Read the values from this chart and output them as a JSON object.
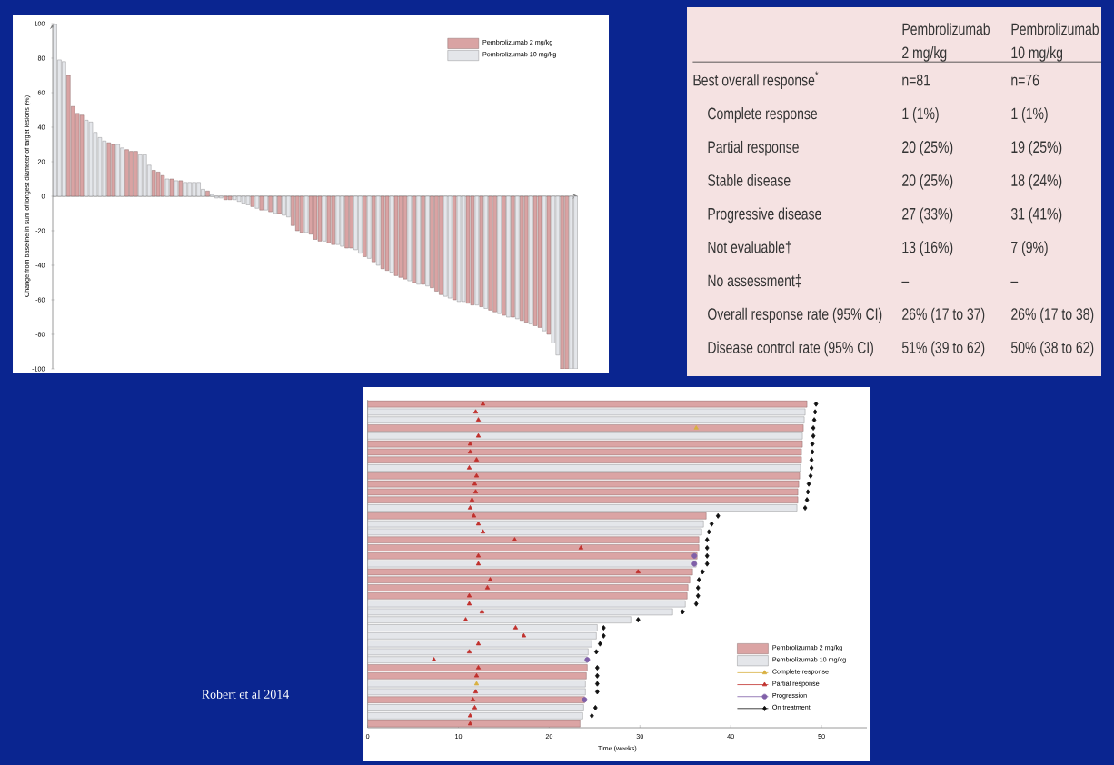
{
  "chart_data": [
    {
      "type": "bar",
      "ylabel": "Change from baseline in sum of longest diameter of target lesions (%)",
      "ylim": [
        -100,
        100
      ],
      "yticks": [
        -100,
        -80,
        -60,
        -40,
        -20,
        0,
        20,
        40,
        60,
        80,
        100
      ],
      "legend": "top right",
      "categories": [
        null,
        null,
        null,
        null,
        null,
        null,
        null,
        null,
        null,
        null,
        null,
        null,
        null,
        null,
        null,
        null,
        null,
        null,
        null,
        null,
        null,
        null,
        null,
        null,
        null,
        null,
        null,
        null,
        null,
        null,
        null,
        null,
        null,
        null,
        null,
        null,
        null,
        null,
        null,
        null,
        null,
        null,
        null,
        null,
        null,
        null,
        null,
        null,
        null,
        null,
        null,
        null,
        null,
        null,
        null,
        null,
        null,
        null,
        null,
        null,
        null,
        null,
        null,
        null,
        null,
        null,
        null,
        null,
        null,
        null,
        null,
        null,
        null,
        null,
        null,
        null,
        null,
        null,
        null,
        null,
        null,
        null,
        null,
        null,
        null,
        null,
        null,
        null,
        null,
        null,
        null,
        null,
        null,
        null,
        null,
        null,
        null,
        null,
        null,
        null,
        null,
        null,
        null,
        null,
        null,
        null,
        null,
        null,
        null,
        null,
        null,
        null,
        null,
        null,
        null,
        null,
        null
      ],
      "series": [
        {
          "name": "Pembrolizumab 2 mg/kg",
          "color": "#d9a3a3",
          "values": [
            null,
            null,
            null,
            70,
            52,
            48,
            47,
            null,
            null,
            null,
            null,
            null,
            31,
            30,
            null,
            null,
            27,
            26,
            26,
            null,
            null,
            null,
            15,
            14,
            12,
            null,
            10,
            null,
            9,
            null,
            null,
            null,
            null,
            null,
            3,
            null,
            null,
            null,
            -2,
            -2,
            null,
            null,
            null,
            null,
            -6,
            null,
            -8,
            null,
            -9,
            null,
            -10,
            null,
            null,
            -17,
            -20,
            -21,
            null,
            -22,
            -25,
            -26,
            null,
            -27,
            -28,
            null,
            null,
            -30,
            -30,
            null,
            null,
            -35,
            null,
            -38,
            null,
            -42,
            -43,
            null,
            -46,
            -47,
            -48,
            null,
            -50,
            null,
            -51,
            null,
            -53,
            -55,
            -57,
            null,
            null,
            -60,
            null,
            null,
            -62,
            -63,
            null,
            -64,
            null,
            -66,
            -67,
            null,
            -69,
            null,
            -70,
            null,
            -72,
            -73,
            null,
            -75,
            -76,
            null,
            -80,
            null,
            null,
            -100,
            -100,
            null,
            null
          ]
        },
        {
          "name": "Pembrolizumab 10 mg/kg",
          "color": "#e4e6ea",
          "values": [
            100,
            79,
            78,
            null,
            null,
            null,
            null,
            44,
            43,
            37,
            34,
            32,
            null,
            null,
            30,
            28,
            null,
            null,
            null,
            24,
            24,
            18,
            null,
            null,
            null,
            10,
            null,
            9,
            null,
            8,
            8,
            8,
            8,
            4,
            null,
            1,
            -1,
            -1,
            null,
            null,
            -2,
            -3,
            -4,
            -5,
            null,
            -7,
            null,
            -8,
            null,
            -10,
            null,
            -11,
            -12,
            null,
            null,
            null,
            -21,
            null,
            null,
            null,
            -26,
            null,
            null,
            -28,
            -29,
            null,
            null,
            -31,
            -33,
            null,
            -36,
            null,
            -40,
            null,
            null,
            -44,
            null,
            null,
            null,
            -49,
            null,
            -51,
            null,
            -52,
            null,
            null,
            null,
            -58,
            -59,
            null,
            -61,
            -61,
            null,
            null,
            -63,
            null,
            -65,
            null,
            null,
            -68,
            null,
            -70,
            null,
            -71,
            null,
            null,
            -74,
            null,
            null,
            -78,
            null,
            -85,
            -92,
            null,
            null,
            -100,
            -100
          ]
        }
      ]
    },
    {
      "type": "other",
      "categories": [
        "Pembrolizumab 2 mg/kg",
        "Pembrolizumab 10 mg/kg"
      ],
      "y_categories": [
        "Best overall response$^{*}$",
        "Complete response",
        "Partial response",
        "Stable disease",
        "Progressive disease",
        "Not evaluable†",
        "No assessment‡",
        "Overall response rate (95% CI)",
        "Disease control rate (95% CI)"
      ],
      "cell_labels": [
        [
          "n=81",
          "n=76"
        ],
        [
          "1 (1%)",
          "1 (1%)"
        ],
        [
          "20 (25%)",
          "19 (25%)"
        ],
        [
          "20 (25%)",
          "18 (24%)"
        ],
        [
          "27 (33%)",
          "31 (41%)"
        ],
        [
          "13 (16%)",
          "7 (9%)"
        ],
        [
          "–",
          "–"
        ],
        [
          "26% (17 to 37)",
          "26% (17 to 38)"
        ],
        [
          "51% (39 to 62)",
          "50% (38 to 62)"
        ]
      ]
    },
    {
      "type": "bar",
      "orientation": "horizontal",
      "xlabel": "Time (weeks)",
      "xlim": [
        0,
        55
      ],
      "xticks": [
        0,
        10,
        20,
        30,
        40,
        50
      ],
      "legend": "bottom right",
      "annotations": [
        "Robert et al 2014"
      ],
      "categories": [
        null,
        null,
        null,
        null,
        null,
        null,
        null,
        null,
        null,
        null,
        null,
        null,
        null,
        null,
        null,
        null,
        null,
        null,
        null,
        null,
        null,
        null,
        null,
        null,
        null,
        null,
        null,
        null,
        null,
        null,
        null,
        null,
        null,
        null,
        null,
        null,
        null,
        null,
        null,
        null,
        null
      ],
      "series": [
        {
          "name": "Pembrolizumab 2 mg/kg",
          "color": "#dba4a4",
          "values": [
            48.4,
            null,
            null,
            48.0,
            null,
            47.9,
            47.8,
            47.8,
            null,
            47.6,
            47.5,
            47.4,
            47.4,
            null,
            37.3,
            null,
            null,
            36.5,
            36.5,
            36.3,
            null,
            35.8,
            35.5,
            35.3,
            35.2,
            null,
            null,
            null,
            null,
            null,
            null,
            null,
            null,
            24.2,
            24.1,
            null,
            null,
            23.9,
            null,
            null,
            23.4
          ]
        },
        {
          "name": "Pembrolizumab 10 mg/kg",
          "color": "#e4e6ea",
          "values": [
            null,
            48.2,
            48.1,
            null,
            47.9,
            null,
            null,
            null,
            47.7,
            null,
            null,
            null,
            null,
            47.3,
            null,
            37.0,
            36.8,
            null,
            null,
            null,
            36.2,
            null,
            null,
            null,
            null,
            35.0,
            33.6,
            29.0,
            25.3,
            25.2,
            24.7,
            24.3,
            24.2,
            null,
            null,
            24.0,
            24.0,
            null,
            23.8,
            23.7,
            null
          ]
        },
        {
          "name": "Complete response",
          "type": "scatter",
          "marker": "triangle",
          "color": "#d8b040",
          "values": [
            null,
            null,
            null,
            36.2,
            null,
            null,
            null,
            null,
            null,
            null,
            null,
            null,
            null,
            null,
            null,
            null,
            null,
            null,
            null,
            null,
            null,
            null,
            null,
            null,
            null,
            null,
            null,
            null,
            null,
            null,
            null,
            null,
            null,
            null,
            null,
            12.0,
            null,
            null,
            null,
            null,
            null
          ]
        },
        {
          "name": "Partial response",
          "type": "scatter",
          "marker": "triangle",
          "color": "#c0302c",
          "values": [
            12.7,
            11.9,
            12.2,
            null,
            12.2,
            11.3,
            11.3,
            12.0,
            11.2,
            12.0,
            11.8,
            11.9,
            11.5,
            11.3,
            11.7,
            12.2,
            12.7,
            16.2,
            23.5,
            12.2,
            12.2,
            29.8,
            13.5,
            13.2,
            11.2,
            11.2,
            12.6,
            10.8,
            16.3,
            17.2,
            12.2,
            11.2,
            7.3,
            12.2,
            12.0,
            null,
            11.9,
            11.6,
            11.8,
            11.3,
            11.3
          ]
        },
        {
          "name": "Progression",
          "type": "scatter",
          "marker": "circle",
          "color": "#8060a8",
          "values": [
            null,
            null,
            null,
            null,
            null,
            null,
            null,
            null,
            null,
            null,
            null,
            null,
            null,
            null,
            null,
            null,
            null,
            null,
            null,
            36.0,
            36.0,
            null,
            null,
            null,
            null,
            null,
            null,
            null,
            null,
            null,
            null,
            null,
            24.2,
            null,
            null,
            null,
            null,
            23.9,
            null,
            null,
            null
          ]
        },
        {
          "name": "On treatment",
          "type": "scatter",
          "marker": "diamond",
          "color": "#111111",
          "values": [
            49.4,
            49.3,
            49.2,
            49.1,
            49.1,
            49.0,
            49.0,
            48.9,
            48.9,
            48.8,
            48.6,
            48.5,
            48.4,
            48.2,
            38.6,
            37.9,
            37.6,
            37.4,
            37.4,
            37.4,
            37.4,
            36.9,
            36.5,
            36.4,
            36.4,
            36.2,
            34.7,
            29.8,
            26.0,
            26.0,
            25.6,
            25.2,
            null,
            25.3,
            25.3,
            25.3,
            25.3,
            null,
            25.1,
            24.7,
            null
          ]
        }
      ]
    }
  ]
}
